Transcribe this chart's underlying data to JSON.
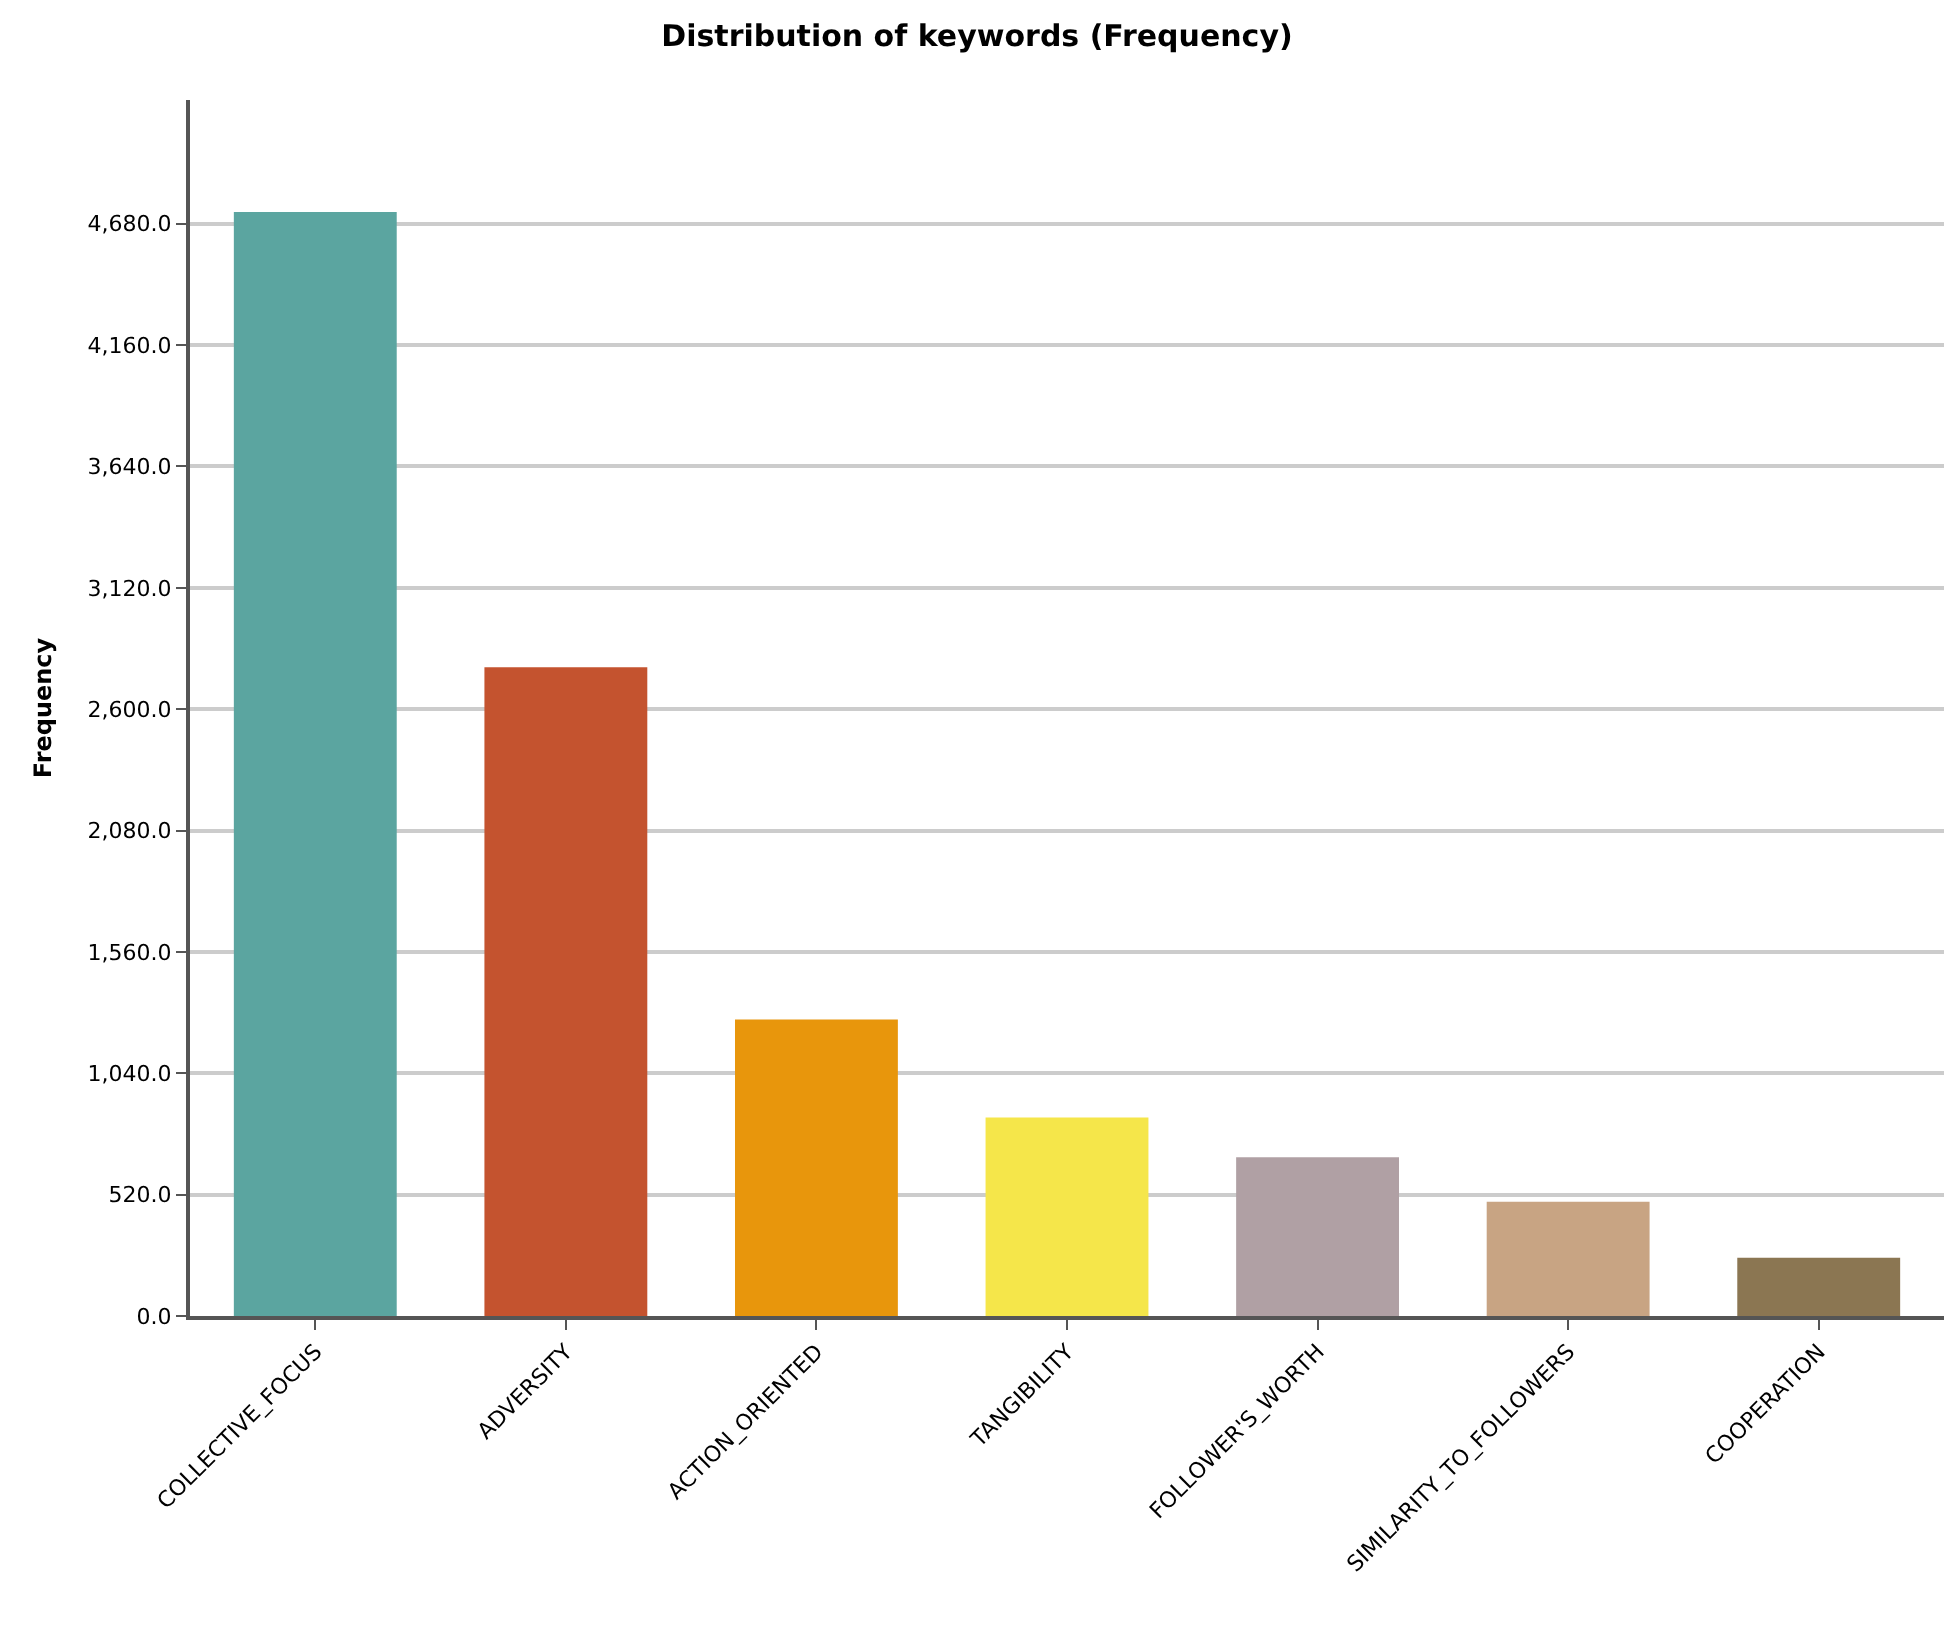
{
  "chart_data": {
    "type": "bar",
    "title": "Distribution of keywords (Frequency)",
    "ylabel": "Frequency",
    "categories": [
      "COLLECTIVE_FOCUS",
      "ADVERSITY",
      "ACTION_ORIENTED",
      "TANGIBILITY",
      "FOLLOWER'S_WORTH",
      "SIMILARITY_TO_FOLLOWERS",
      "COOPERATION"
    ],
    "values": [
      4730,
      2780,
      1270,
      850,
      680,
      490,
      250
    ],
    "colors": [
      "#5ba5a0",
      "#c4532f",
      "#e8960c",
      "#f5e64a",
      "#b0a0a4",
      "#c8a483",
      "#8b7652"
    ],
    "ylim": [
      0,
      5210
    ],
    "yticks": [
      {
        "value": 0,
        "label": "0.0"
      },
      {
        "value": 520,
        "label": "520.0"
      },
      {
        "value": 1040,
        "label": "1,040.0"
      },
      {
        "value": 1560,
        "label": "1,560.0"
      },
      {
        "value": 2080,
        "label": "2,080.0"
      },
      {
        "value": 2600,
        "label": "2,600.0"
      },
      {
        "value": 3120,
        "label": "3,120.0"
      },
      {
        "value": 3640,
        "label": "3,640.0"
      },
      {
        "value": 4160,
        "label": "4,160.0"
      },
      {
        "value": 4680,
        "label": "4,680.0"
      }
    ],
    "grid": "y"
  }
}
